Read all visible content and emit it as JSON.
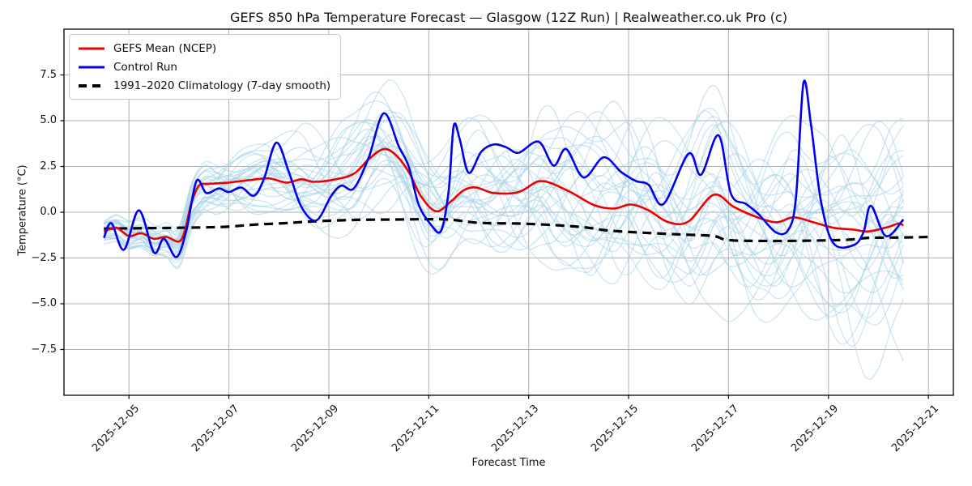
{
  "chart_data": {
    "type": "line",
    "title": "GEFS 850 hPa Temperature Forecast — Glasgow (12Z Run) | Realweather.co.uk Pro (c)",
    "xlabel": "Forecast Time",
    "ylabel": "Temperature (°C)",
    "grid": true,
    "legend_position": "upper left",
    "time_origin": "2025-12-04T12:00Z (t in days)",
    "x_domain_days": [
      -0.8,
      17.0
    ],
    "ylim": [
      -10,
      10
    ],
    "y_ticks": [
      7.5,
      5.0,
      2.5,
      0.0,
      -2.5,
      -5.0,
      -7.5
    ],
    "y_tick_labels": [
      "7.5",
      "5.0",
      "2.5",
      "0.0",
      "−2.5",
      "−5.0",
      "−7.5"
    ],
    "x_tick_days": [
      0.5,
      2.5,
      4.5,
      6.5,
      8.5,
      10.5,
      12.5,
      14.5,
      16.5
    ],
    "x_tick_labels": [
      "2025-12-05",
      "2025-12-07",
      "2025-12-09",
      "2025-12-11",
      "2025-12-13",
      "2025-12-15",
      "2025-12-17",
      "2025-12-19",
      "2025-12-21"
    ],
    "legend": {
      "entries": [
        {
          "label": "GEFS Mean (NCEP)",
          "color": "#ee0000",
          "style": "solid"
        },
        {
          "label": "Control Run",
          "color": "#0000ee",
          "style": "solid"
        },
        {
          "label": "1991–2020 Climatology (7-day smooth)",
          "color": "#000000",
          "style": "dashed"
        }
      ]
    },
    "series": [
      {
        "name": "GEFS Mean (NCEP)",
        "color": "#ee0000",
        "style": "solid",
        "width": 2.6,
        "points": [
          [
            0,
            -1.05
          ],
          [
            0.25,
            -0.85
          ],
          [
            0.5,
            -1.3
          ],
          [
            0.75,
            -1.15
          ],
          [
            1.0,
            -1.45
          ],
          [
            1.25,
            -1.35
          ],
          [
            1.5,
            -1.6
          ],
          [
            1.62,
            -1.0
          ],
          [
            1.75,
            0.5
          ],
          [
            1.9,
            1.45
          ],
          [
            2.1,
            1.55
          ],
          [
            2.5,
            1.62
          ],
          [
            2.9,
            1.75
          ],
          [
            3.3,
            1.85
          ],
          [
            3.65,
            1.62
          ],
          [
            3.95,
            1.8
          ],
          [
            4.2,
            1.66
          ],
          [
            4.6,
            1.78
          ],
          [
            5.0,
            2.1
          ],
          [
            5.3,
            2.9
          ],
          [
            5.6,
            3.45
          ],
          [
            5.85,
            3.1
          ],
          [
            6.1,
            2.2
          ],
          [
            6.35,
            0.85
          ],
          [
            6.65,
            0.05
          ],
          [
            6.95,
            0.6
          ],
          [
            7.2,
            1.2
          ],
          [
            7.45,
            1.35
          ],
          [
            7.8,
            1.05
          ],
          [
            8.3,
            1.1
          ],
          [
            8.75,
            1.7
          ],
          [
            9.3,
            1.15
          ],
          [
            9.8,
            0.4
          ],
          [
            10.2,
            0.2
          ],
          [
            10.55,
            0.42
          ],
          [
            10.9,
            0.1
          ],
          [
            11.3,
            -0.55
          ],
          [
            11.7,
            -0.5
          ],
          [
            12.2,
            0.95
          ],
          [
            12.6,
            0.3
          ],
          [
            13.0,
            -0.2
          ],
          [
            13.45,
            -0.55
          ],
          [
            13.8,
            -0.28
          ],
          [
            14.2,
            -0.55
          ],
          [
            14.6,
            -0.85
          ],
          [
            15.0,
            -0.95
          ],
          [
            15.3,
            -1.05
          ],
          [
            15.7,
            -0.8
          ],
          [
            15.9,
            -0.62
          ],
          [
            16.0,
            -0.72
          ]
        ]
      },
      {
        "name": "Control Run",
        "color": "#0000ee",
        "style": "solid",
        "width": 2.6,
        "points": [
          [
            0,
            -1.4
          ],
          [
            0.15,
            -0.6
          ],
          [
            0.4,
            -2.05
          ],
          [
            0.7,
            0.1
          ],
          [
            1.0,
            -2.2
          ],
          [
            1.2,
            -1.45
          ],
          [
            1.45,
            -2.45
          ],
          [
            1.65,
            -1.0
          ],
          [
            1.85,
            1.7
          ],
          [
            2.05,
            1.05
          ],
          [
            2.3,
            1.3
          ],
          [
            2.5,
            1.1
          ],
          [
            2.75,
            1.35
          ],
          [
            3.0,
            0.9
          ],
          [
            3.2,
            1.8
          ],
          [
            3.45,
            3.8
          ],
          [
            3.7,
            2.2
          ],
          [
            3.95,
            0.3
          ],
          [
            4.25,
            -0.45
          ],
          [
            4.55,
            0.9
          ],
          [
            4.75,
            1.45
          ],
          [
            5.0,
            1.3
          ],
          [
            5.3,
            3.0
          ],
          [
            5.6,
            5.4
          ],
          [
            5.9,
            3.6
          ],
          [
            6.1,
            2.5
          ],
          [
            6.3,
            0.4
          ],
          [
            6.55,
            -0.7
          ],
          [
            6.75,
            -1.0
          ],
          [
            6.9,
            1.2
          ],
          [
            7.0,
            4.7
          ],
          [
            7.12,
            4.0
          ],
          [
            7.3,
            2.15
          ],
          [
            7.55,
            3.3
          ],
          [
            7.8,
            3.7
          ],
          [
            8.05,
            3.55
          ],
          [
            8.3,
            3.25
          ],
          [
            8.7,
            3.85
          ],
          [
            9.0,
            2.55
          ],
          [
            9.25,
            3.45
          ],
          [
            9.6,
            1.9
          ],
          [
            10.0,
            3.0
          ],
          [
            10.35,
            2.2
          ],
          [
            10.65,
            1.7
          ],
          [
            10.9,
            1.5
          ],
          [
            11.2,
            0.45
          ],
          [
            11.7,
            3.2
          ],
          [
            11.95,
            2.05
          ],
          [
            12.3,
            4.2
          ],
          [
            12.55,
            1.0
          ],
          [
            12.85,
            0.45
          ],
          [
            13.1,
            -0.1
          ],
          [
            13.45,
            -1.1
          ],
          [
            13.7,
            -0.95
          ],
          [
            13.85,
            0.8
          ],
          [
            14.0,
            7.05
          ],
          [
            14.15,
            4.8
          ],
          [
            14.35,
            0.6
          ],
          [
            14.6,
            -1.7
          ],
          [
            15.0,
            -1.8
          ],
          [
            15.2,
            -1.1
          ],
          [
            15.35,
            0.35
          ],
          [
            15.65,
            -1.3
          ],
          [
            16.0,
            -0.4
          ]
        ]
      },
      {
        "name": "1991–2020 Climatology (7-day smooth)",
        "color": "#000000",
        "style": "dashed",
        "width": 3.2,
        "points": [
          [
            0,
            -0.9
          ],
          [
            0.5,
            -0.88
          ],
          [
            1.5,
            -0.85
          ],
          [
            2.4,
            -0.8
          ],
          [
            3.0,
            -0.68
          ],
          [
            3.6,
            -0.6
          ],
          [
            4.2,
            -0.5
          ],
          [
            5.0,
            -0.42
          ],
          [
            5.8,
            -0.4
          ],
          [
            6.6,
            -0.38
          ],
          [
            7.0,
            -0.42
          ],
          [
            7.5,
            -0.58
          ],
          [
            8.3,
            -0.62
          ],
          [
            9.0,
            -0.7
          ],
          [
            9.6,
            -0.82
          ],
          [
            10.1,
            -1.0
          ],
          [
            10.8,
            -1.12
          ],
          [
            11.6,
            -1.22
          ],
          [
            12.2,
            -1.3
          ],
          [
            12.5,
            -1.52
          ],
          [
            13.3,
            -1.57
          ],
          [
            14.2,
            -1.55
          ],
          [
            14.9,
            -1.5
          ],
          [
            15.3,
            -1.4
          ],
          [
            16.0,
            -1.38
          ],
          [
            16.5,
            -1.35
          ]
        ]
      }
    ],
    "ensemble": {
      "name": "GEFS ensemble members (spaghetti)",
      "color": "#a8d3e8",
      "opacity": 0.55,
      "line_width": 1.4,
      "count": 30,
      "seed": 9,
      "step_days": 0.25,
      "t_start": 0,
      "t_end": 16,
      "spread_base": 0.5,
      "spread_growth_early": 0.36,
      "spread_growth_late": 0.2,
      "spread_knee_days": 6,
      "approx_range_early": [
        -2.6,
        0.5
      ],
      "approx_range_late": [
        -9.3,
        8.9
      ]
    }
  }
}
